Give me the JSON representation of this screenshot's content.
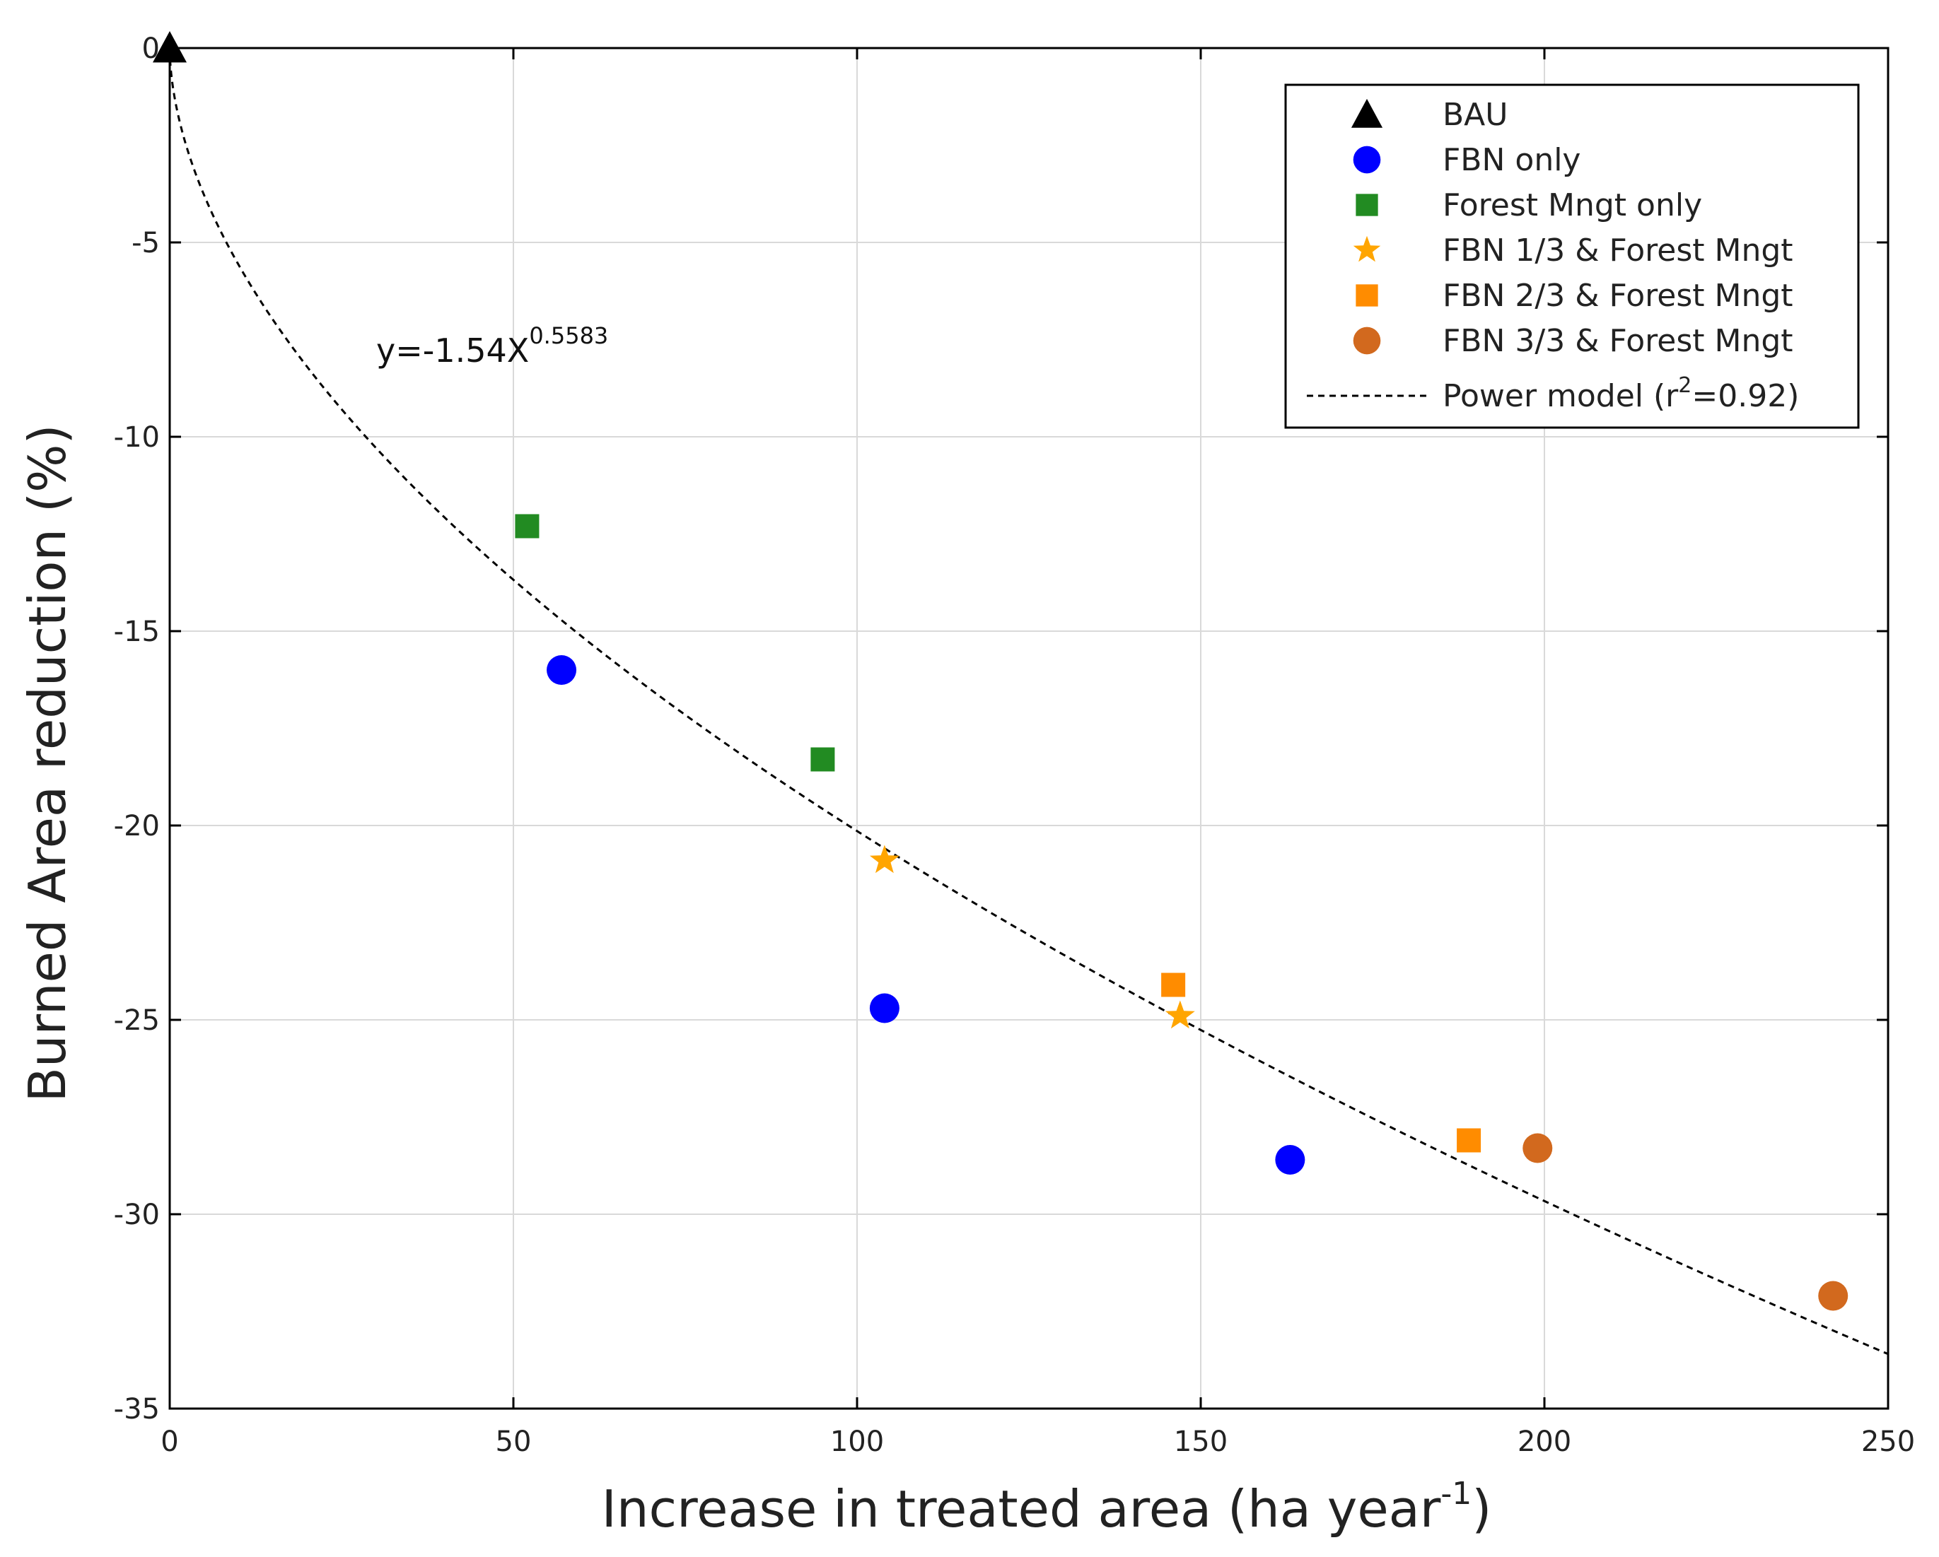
{
  "chart_data": {
    "type": "scatter",
    "title": "",
    "xlabel": "Increase in treated area (ha  year",
    "xlabel_sup": "-1",
    "xlabel_close": ")",
    "ylabel": "Burned Area reduction (%)",
    "xlim": [
      0,
      250
    ],
    "ylim": [
      -35,
      0
    ],
    "xticks": [
      0,
      50,
      100,
      150,
      200,
      250
    ],
    "yticks": [
      0,
      -5,
      -10,
      -15,
      -20,
      -25,
      -30,
      -35
    ],
    "grid": true,
    "legend_position": "top-right",
    "series": [
      {
        "name": "BAU",
        "marker": "triangle",
        "color": "#000000",
        "points": [
          {
            "x": 0,
            "y": 0
          }
        ]
      },
      {
        "name": "FBN only",
        "marker": "circle",
        "color": "#0000ff",
        "points": [
          {
            "x": 57,
            "y": -16.0
          },
          {
            "x": 104,
            "y": -24.7
          },
          {
            "x": 163,
            "y": -28.6
          }
        ]
      },
      {
        "name": "Forest Mngt only",
        "marker": "square",
        "color": "#228b22",
        "points": [
          {
            "x": 52,
            "y": -12.3
          },
          {
            "x": 95,
            "y": -18.3
          }
        ]
      },
      {
        "name": "FBN 1/3 & Forest Mngt",
        "marker": "star",
        "color": "#ffa500",
        "points": [
          {
            "x": 104,
            "y": -20.9
          },
          {
            "x": 147,
            "y": -24.9
          }
        ]
      },
      {
        "name": "FBN 2/3 & Forest Mngt",
        "marker": "square",
        "color": "#ff8c00",
        "points": [
          {
            "x": 146,
            "y": -24.1
          },
          {
            "x": 189,
            "y": -28.1
          }
        ]
      },
      {
        "name": "FBN 3/3 & Forest Mngt",
        "marker": "circle",
        "color": "#d2691e",
        "points": [
          {
            "x": 199,
            "y": -28.3
          },
          {
            "x": 242,
            "y": -32.1
          }
        ]
      }
    ],
    "fit": {
      "name": "Power model (r",
      "name_sup": "2",
      "name_tail": "=0.92)",
      "model": "power",
      "a": -1.54,
      "b": 0.5583,
      "equation": "y=-1.54X",
      "equation_sup": "0.5583"
    }
  }
}
